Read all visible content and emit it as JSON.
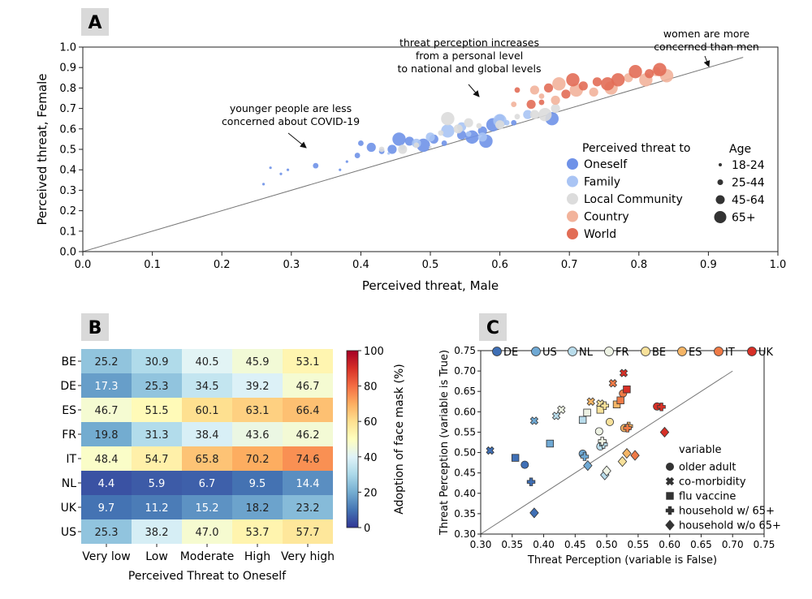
{
  "palette": {
    "Oneself": "#6f92e8",
    "Family": "#a9c4f4",
    "Local Community": "#dcdcdc",
    "Country": "#f2b39b",
    "World": "#e26d56",
    "DE": "#3f6fb5",
    "US": "#6fa9d4",
    "NL": "#b9dceb",
    "FR": "#eef3e4",
    "BE": "#f8e19a",
    "ES": "#f5b566",
    "IT": "#ef7a46",
    "UK": "#d73027"
  },
  "chart_data": [
    {
      "panel": "A",
      "type": "scatter",
      "xlabel": "Perceived threat, Male",
      "ylabel": "Perceived threat, Female",
      "xlim": [
        0.0,
        1.0
      ],
      "ylim": [
        0.0,
        1.0
      ],
      "xticks": [
        "0.0",
        "0.1",
        "0.2",
        "0.3",
        "0.4",
        "0.5",
        "0.6",
        "0.7",
        "0.8",
        "0.9",
        "1.0"
      ],
      "yticks": [
        "0.0",
        "0.1",
        "0.2",
        "0.3",
        "0.4",
        "0.5",
        "0.6",
        "0.7",
        "0.8",
        "0.9",
        "1.0"
      ],
      "diagonal": [
        [
          0,
          0
        ],
        [
          0.95,
          0.95
        ]
      ],
      "grid": false,
      "legend_title": "Perceived threat to",
      "legend_position": "lower-right",
      "size_legend_title": "Age",
      "age_groups": [
        "18-24",
        "25-44",
        "45-64",
        "65+"
      ],
      "annotations": [
        {
          "text": [
            "younger people are less",
            "concerned about COVID-19"
          ],
          "target": [
            0.32,
            0.5
          ]
        },
        {
          "text": [
            "threat perception increases",
            "from a personal level",
            "to national and global levels"
          ],
          "target": [
            0.57,
            0.76
          ]
        },
        {
          "text": [
            "women are more",
            "concerned than men"
          ],
          "target": [
            0.895,
            0.92
          ]
        }
      ],
      "series": [
        {
          "name": "Oneself",
          "points": [
            [
              0.26,
              0.33,
              0
            ],
            [
              0.27,
              0.41,
              0
            ],
            [
              0.285,
              0.38,
              0
            ],
            [
              0.295,
              0.4,
              0
            ],
            [
              0.335,
              0.42,
              1
            ],
            [
              0.37,
              0.4,
              0
            ],
            [
              0.38,
              0.44,
              0
            ],
            [
              0.395,
              0.47,
              1
            ],
            [
              0.4,
              0.53,
              1
            ],
            [
              0.415,
              0.51,
              2
            ],
            [
              0.43,
              0.49,
              1
            ],
            [
              0.445,
              0.5,
              2
            ],
            [
              0.455,
              0.55,
              3
            ],
            [
              0.47,
              0.54,
              2
            ],
            [
              0.49,
              0.52,
              3
            ],
            [
              0.505,
              0.55,
              2
            ],
            [
              0.52,
              0.53,
              1
            ],
            [
              0.545,
              0.57,
              2
            ],
            [
              0.56,
              0.56,
              3
            ],
            [
              0.575,
              0.59,
              2
            ],
            [
              0.58,
              0.54,
              3
            ],
            [
              0.59,
              0.62,
              3
            ],
            [
              0.6,
              0.65,
              2
            ],
            [
              0.62,
              0.63,
              1
            ],
            [
              0.675,
              0.65,
              3
            ]
          ]
        },
        {
          "name": "Family",
          "points": [
            [
              0.44,
              0.48,
              0
            ],
            [
              0.46,
              0.51,
              1
            ],
            [
              0.48,
              0.53,
              2
            ],
            [
              0.5,
              0.56,
              2
            ],
            [
              0.525,
              0.59,
              3
            ],
            [
              0.545,
              0.61,
              2
            ],
            [
              0.555,
              0.575,
              1
            ],
            [
              0.575,
              0.56,
              2
            ],
            [
              0.6,
              0.64,
              3
            ],
            [
              0.61,
              0.63,
              1
            ],
            [
              0.64,
              0.67,
              2
            ]
          ]
        },
        {
          "name": "Local Community",
          "points": [
            [
              0.43,
              0.5,
              1
            ],
            [
              0.46,
              0.5,
              2
            ],
            [
              0.48,
              0.52,
              1
            ],
            [
              0.5,
              0.51,
              0
            ],
            [
              0.515,
              0.58,
              1
            ],
            [
              0.525,
              0.65,
              3
            ],
            [
              0.54,
              0.6,
              2
            ],
            [
              0.555,
              0.63,
              2
            ],
            [
              0.57,
              0.615,
              1
            ],
            [
              0.6,
              0.62,
              2
            ],
            [
              0.625,
              0.66,
              1
            ],
            [
              0.65,
              0.67,
              2
            ],
            [
              0.665,
              0.67,
              3
            ],
            [
              0.68,
              0.7,
              2
            ]
          ]
        },
        {
          "name": "Country",
          "points": [
            [
              0.62,
              0.72,
              1
            ],
            [
              0.65,
              0.79,
              2
            ],
            [
              0.66,
              0.76,
              1
            ],
            [
              0.68,
              0.74,
              2
            ],
            [
              0.685,
              0.82,
              3
            ],
            [
              0.71,
              0.79,
              3
            ],
            [
              0.735,
              0.78,
              2
            ],
            [
              0.76,
              0.8,
              3
            ],
            [
              0.785,
              0.85,
              2
            ],
            [
              0.81,
              0.84,
              3
            ],
            [
              0.825,
              0.88,
              2
            ],
            [
              0.84,
              0.86,
              3
            ]
          ]
        },
        {
          "name": "World",
          "points": [
            [
              0.625,
              0.79,
              1
            ],
            [
              0.645,
              0.72,
              2
            ],
            [
              0.66,
              0.73,
              1
            ],
            [
              0.67,
              0.8,
              2
            ],
            [
              0.695,
              0.77,
              2
            ],
            [
              0.705,
              0.84,
              3
            ],
            [
              0.72,
              0.81,
              2
            ],
            [
              0.74,
              0.83,
              2
            ],
            [
              0.755,
              0.82,
              3
            ],
            [
              0.77,
              0.84,
              3
            ],
            [
              0.795,
              0.88,
              3
            ],
            [
              0.815,
              0.87,
              2
            ],
            [
              0.83,
              0.89,
              3
            ]
          ]
        }
      ]
    },
    {
      "panel": "B",
      "type": "heatmap",
      "xlabel": "Perceived Threat to Oneself",
      "colorbar_label": "Adoption of face mask (%)",
      "colorbar_ticks": [
        "0",
        "20",
        "40",
        "60",
        "80",
        "100"
      ],
      "vmin": 0,
      "vmax": 100,
      "columns": [
        "Very low",
        "Low",
        "Moderate",
        "High",
        "Very high"
      ],
      "rows": [
        "BE",
        "DE",
        "ES",
        "FR",
        "IT",
        "NL",
        "UK",
        "US"
      ],
      "values": [
        [
          "25.2",
          "30.9",
          "40.5",
          "45.9",
          "53.1"
        ],
        [
          "17.3",
          "25.3",
          "34.5",
          "39.2",
          "46.7"
        ],
        [
          "46.7",
          "51.5",
          "60.1",
          "63.1",
          "66.4"
        ],
        [
          "19.8",
          "31.3",
          "38.4",
          "43.6",
          "46.2"
        ],
        [
          "48.4",
          "54.7",
          "65.8",
          "70.2",
          "74.6"
        ],
        [
          "4.4",
          "5.9",
          "6.7",
          "9.5",
          "14.4"
        ],
        [
          "9.7",
          "11.2",
          "15.2",
          "18.2",
          "23.2"
        ],
        [
          "25.3",
          "38.2",
          "47.0",
          "53.7",
          "57.7"
        ]
      ]
    },
    {
      "panel": "C",
      "type": "scatter",
      "xlabel": "Threat Perception (variable is False)",
      "ylabel": "Threat Perception (variable is True)",
      "xlim": [
        0.3,
        0.75
      ],
      "ylim": [
        0.3,
        0.75
      ],
      "xticks": [
        "0.30",
        "0.35",
        "0.40",
        "0.45",
        "0.50",
        "0.55",
        "0.60",
        "0.65",
        "0.70",
        "0.75"
      ],
      "yticks": [
        "0.30",
        "0.35",
        "0.40",
        "0.45",
        "0.50",
        "0.55",
        "0.60",
        "0.65",
        "0.70",
        "0.75"
      ],
      "diagonal": [
        [
          0.3,
          0.3
        ],
        [
          0.7,
          0.7
        ]
      ],
      "country_legend": [
        "DE",
        "US",
        "NL",
        "FR",
        "BE",
        "ES",
        "IT",
        "UK"
      ],
      "legend_position": "top",
      "variable_legend_title": "variable",
      "variables": [
        "older adult",
        "co-morbidity",
        "flu vaccine",
        "household w/ 65+",
        "household w/o 65+"
      ],
      "markers": [
        "circle",
        "x",
        "square",
        "plus",
        "diamond"
      ],
      "points": [
        {
          "country": "DE",
          "marker": "circle",
          "x": 0.37,
          "y": 0.47
        },
        {
          "country": "DE",
          "marker": "x",
          "x": 0.315,
          "y": 0.505
        },
        {
          "country": "DE",
          "marker": "square",
          "x": 0.355,
          "y": 0.487
        },
        {
          "country": "DE",
          "marker": "plus",
          "x": 0.38,
          "y": 0.428
        },
        {
          "country": "DE",
          "marker": "diamond",
          "x": 0.385,
          "y": 0.352
        },
        {
          "country": "US",
          "marker": "circle",
          "x": 0.462,
          "y": 0.497
        },
        {
          "country": "US",
          "marker": "x",
          "x": 0.385,
          "y": 0.578
        },
        {
          "country": "US",
          "marker": "square",
          "x": 0.41,
          "y": 0.522
        },
        {
          "country": "US",
          "marker": "plus",
          "x": 0.465,
          "y": 0.49
        },
        {
          "country": "US",
          "marker": "diamond",
          "x": 0.47,
          "y": 0.468
        },
        {
          "country": "NL",
          "marker": "circle",
          "x": 0.49,
          "y": 0.515
        },
        {
          "country": "NL",
          "marker": "x",
          "x": 0.42,
          "y": 0.59
        },
        {
          "country": "NL",
          "marker": "square",
          "x": 0.462,
          "y": 0.58
        },
        {
          "country": "NL",
          "marker": "plus",
          "x": 0.495,
          "y": 0.52
        },
        {
          "country": "NL",
          "marker": "diamond",
          "x": 0.497,
          "y": 0.445
        },
        {
          "country": "FR",
          "marker": "circle",
          "x": 0.488,
          "y": 0.552
        },
        {
          "country": "FR",
          "marker": "x",
          "x": 0.428,
          "y": 0.605
        },
        {
          "country": "FR",
          "marker": "square",
          "x": 0.469,
          "y": 0.598
        },
        {
          "country": "FR",
          "marker": "plus",
          "x": 0.493,
          "y": 0.528
        },
        {
          "country": "FR",
          "marker": "diamond",
          "x": 0.5,
          "y": 0.455
        },
        {
          "country": "BE",
          "marker": "circle",
          "x": 0.505,
          "y": 0.575
        },
        {
          "country": "BE",
          "marker": "x",
          "x": 0.49,
          "y": 0.62
        },
        {
          "country": "BE",
          "marker": "square",
          "x": 0.49,
          "y": 0.605
        },
        {
          "country": "BE",
          "marker": "plus",
          "x": 0.497,
          "y": 0.615
        },
        {
          "country": "BE",
          "marker": "diamond",
          "x": 0.525,
          "y": 0.478
        },
        {
          "country": "ES",
          "marker": "circle",
          "x": 0.528,
          "y": 0.56
        },
        {
          "country": "ES",
          "marker": "x",
          "x": 0.475,
          "y": 0.625
        },
        {
          "country": "ES",
          "marker": "square",
          "x": 0.516,
          "y": 0.618
        },
        {
          "country": "ES",
          "marker": "plus",
          "x": 0.535,
          "y": 0.565
        },
        {
          "country": "ES",
          "marker": "diamond",
          "x": 0.532,
          "y": 0.498
        },
        {
          "country": "IT",
          "marker": "circle",
          "x": 0.526,
          "y": 0.645
        },
        {
          "country": "IT",
          "marker": "x",
          "x": 0.51,
          "y": 0.67
        },
        {
          "country": "IT",
          "marker": "square",
          "x": 0.522,
          "y": 0.628
        },
        {
          "country": "IT",
          "marker": "plus",
          "x": 0.533,
          "y": 0.56
        },
        {
          "country": "IT",
          "marker": "diamond",
          "x": 0.545,
          "y": 0.493
        },
        {
          "country": "UK",
          "marker": "circle",
          "x": 0.58,
          "y": 0.613
        },
        {
          "country": "UK",
          "marker": "x",
          "x": 0.527,
          "y": 0.695
        },
        {
          "country": "UK",
          "marker": "square",
          "x": 0.532,
          "y": 0.655
        },
        {
          "country": "UK",
          "marker": "plus",
          "x": 0.587,
          "y": 0.612
        },
        {
          "country": "UK",
          "marker": "diamond",
          "x": 0.592,
          "y": 0.55
        }
      ]
    }
  ],
  "panel_labels": [
    "A",
    "B",
    "C"
  ]
}
